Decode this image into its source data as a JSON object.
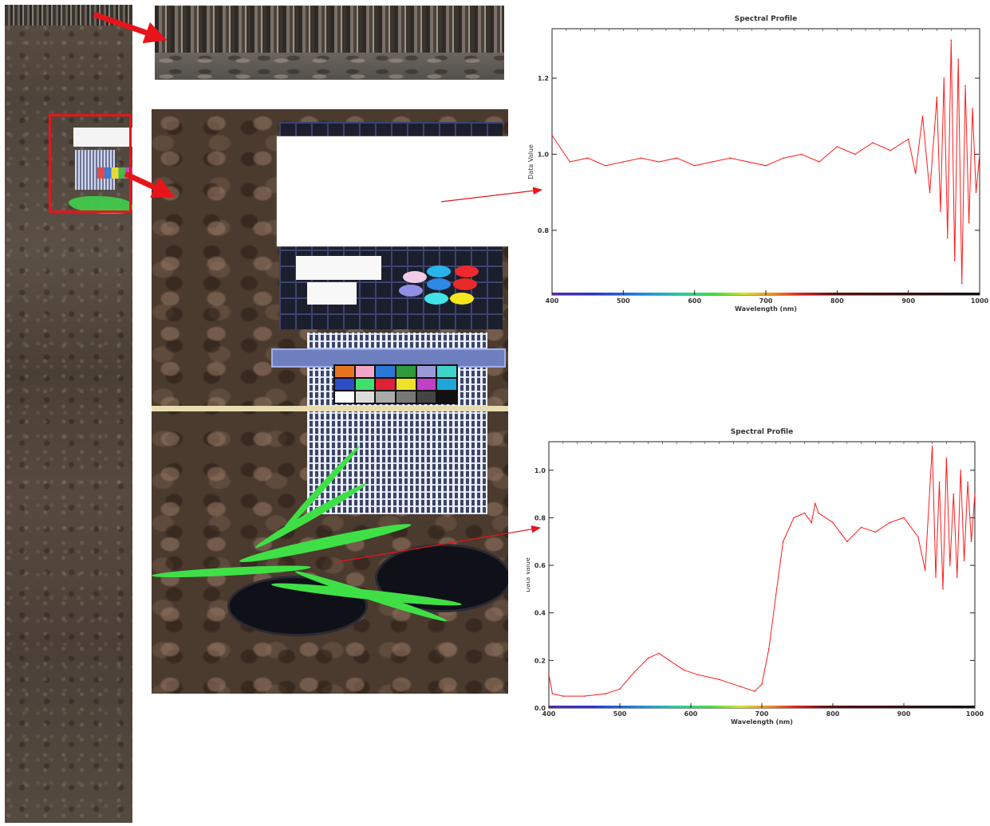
{
  "chart_data": [
    {
      "type": "line",
      "title": "Spectral Profile",
      "xlabel": "Wavelength (nm)",
      "ylabel": "Data Value",
      "xlim": [
        400,
        1000
      ],
      "ylim": [
        0.63,
        1.33
      ],
      "xticks": [
        400,
        500,
        600,
        700,
        800,
        900,
        1000
      ],
      "yticks": [
        0.8,
        1.0,
        1.2
      ],
      "ytick_labels": [
        "0.8",
        "1.0",
        "1.2"
      ],
      "series_color": "#ff1a1a",
      "x": [
        400,
        425,
        450,
        475,
        500,
        525,
        550,
        575,
        600,
        625,
        650,
        675,
        700,
        725,
        750,
        775,
        800,
        825,
        850,
        875,
        900,
        910,
        920,
        930,
        940,
        945,
        950,
        955,
        960,
        965,
        970,
        975,
        980,
        985,
        990,
        995,
        1000
      ],
      "values": [
        1.05,
        0.98,
        0.99,
        0.97,
        0.98,
        0.99,
        0.98,
        0.99,
        0.97,
        0.98,
        0.99,
        0.98,
        0.97,
        0.99,
        1.0,
        0.98,
        1.02,
        1.0,
        1.03,
        1.01,
        1.04,
        0.95,
        1.1,
        0.9,
        1.15,
        0.85,
        1.2,
        0.78,
        1.3,
        0.72,
        1.25,
        0.66,
        1.18,
        0.82,
        1.12,
        0.9,
        1.0
      ]
    },
    {
      "type": "line",
      "title": "Spectral Profile",
      "xlabel": "Wavelength (nm)",
      "ylabel": "Data Value",
      "xlim": [
        400,
        1000
      ],
      "ylim": [
        0.0,
        1.12
      ],
      "xticks": [
        400,
        500,
        600,
        700,
        800,
        900,
        1000
      ],
      "yticks": [
        0.0,
        0.2,
        0.4,
        0.6,
        0.8,
        1.0
      ],
      "ytick_labels": [
        "0.0",
        "0.2",
        "0.4",
        "0.6",
        "0.8",
        "1.0"
      ],
      "series_color": "#ff1a1a",
      "x": [
        400,
        405,
        420,
        450,
        480,
        500,
        520,
        540,
        555,
        570,
        590,
        610,
        640,
        670,
        690,
        700,
        710,
        720,
        730,
        745,
        760,
        770,
        775,
        780,
        800,
        820,
        840,
        860,
        880,
        900,
        920,
        930,
        940,
        945,
        950,
        955,
        960,
        965,
        970,
        975,
        980,
        985,
        990,
        995,
        1000
      ],
      "values": [
        0.14,
        0.06,
        0.05,
        0.05,
        0.06,
        0.08,
        0.15,
        0.21,
        0.23,
        0.2,
        0.16,
        0.14,
        0.12,
        0.09,
        0.07,
        0.1,
        0.25,
        0.48,
        0.7,
        0.8,
        0.82,
        0.78,
        0.86,
        0.82,
        0.78,
        0.7,
        0.76,
        0.74,
        0.78,
        0.8,
        0.72,
        0.58,
        1.1,
        0.55,
        0.95,
        0.5,
        1.05,
        0.6,
        0.9,
        0.55,
        1.0,
        0.62,
        0.95,
        0.7,
        0.9
      ]
    }
  ]
}
